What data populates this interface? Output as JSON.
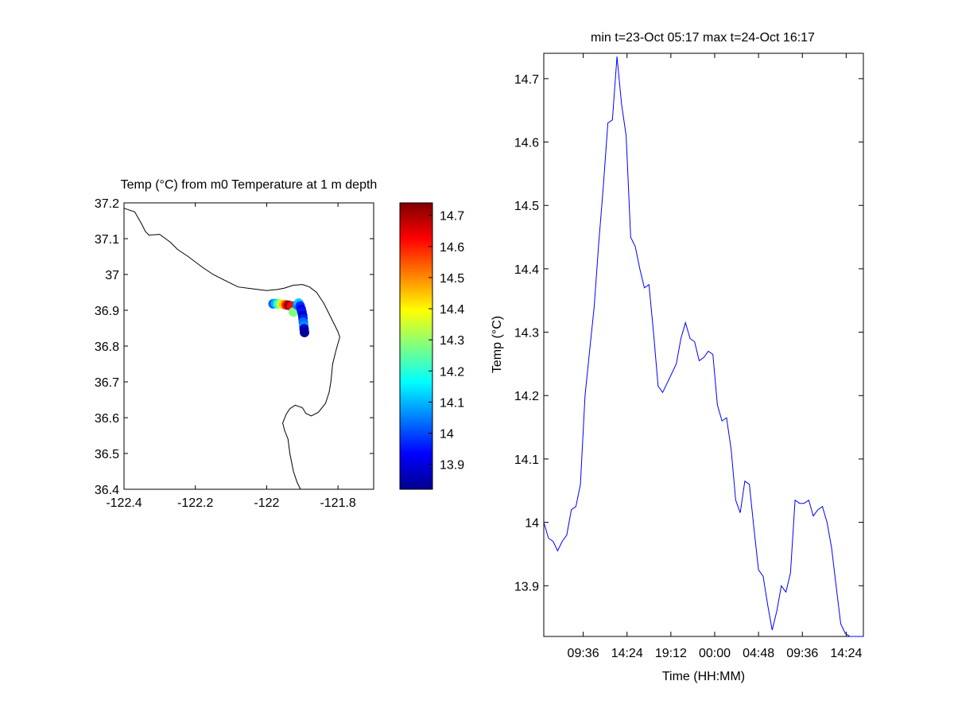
{
  "colors": {
    "line": "#0000ff",
    "axes": "#000000",
    "coast": "#000000"
  },
  "chart_data": [
    {
      "type": "scatter",
      "title": "Temp (°C) from m0 Temperature at 1 m depth",
      "xlabel": "",
      "ylabel": "",
      "xlim": [
        -122.4,
        -121.7
      ],
      "ylim": [
        36.4,
        37.2
      ],
      "xticks": [
        -122.4,
        -122.2,
        -122,
        -121.8
      ],
      "xtick_labels": [
        "-122.4",
        "-122.2",
        "-122",
        "-121.8"
      ],
      "yticks": [
        36.4,
        36.5,
        36.6,
        36.7,
        36.8,
        36.9,
        37.0,
        37.1,
        37.2
      ],
      "ytick_labels": [
        "36.4",
        "36.5",
        "36.6",
        "36.7",
        "36.8",
        "36.9",
        "37",
        "37.1",
        "37.2"
      ],
      "colormap": "jet",
      "color_range": [
        13.82,
        14.74
      ],
      "colorbar_ticks": [
        13.9,
        14.0,
        14.1,
        14.2,
        14.3,
        14.4,
        14.5,
        14.6,
        14.7
      ],
      "colorbar_tick_labels": [
        "13.9",
        "14",
        "14.1",
        "14.2",
        "14.3",
        "14.4",
        "14.5",
        "14.6",
        "14.7"
      ],
      "points": [
        {
          "lon": -121.982,
          "lat": 36.918,
          "temp": 14.02
        },
        {
          "lon": -121.975,
          "lat": 36.919,
          "temp": 14.1
        },
        {
          "lon": -121.968,
          "lat": 36.918,
          "temp": 14.22
        },
        {
          "lon": -121.96,
          "lat": 36.917,
          "temp": 14.35
        },
        {
          "lon": -121.952,
          "lat": 36.916,
          "temp": 14.45
        },
        {
          "lon": -121.945,
          "lat": 36.915,
          "temp": 14.6
        },
        {
          "lon": -121.938,
          "lat": 36.914,
          "temp": 14.73
        },
        {
          "lon": -121.93,
          "lat": 36.912,
          "temp": 14.62
        },
        {
          "lon": -121.925,
          "lat": 36.895,
          "temp": 14.28
        },
        {
          "lon": -121.915,
          "lat": 36.915,
          "temp": 14.05
        },
        {
          "lon": -121.91,
          "lat": 36.92,
          "temp": 14.12
        },
        {
          "lon": -121.906,
          "lat": 36.912,
          "temp": 13.97
        },
        {
          "lon": -121.903,
          "lat": 36.903,
          "temp": 13.92
        },
        {
          "lon": -121.901,
          "lat": 36.895,
          "temp": 13.95
        },
        {
          "lon": -121.899,
          "lat": 36.885,
          "temp": 13.88
        },
        {
          "lon": -121.898,
          "lat": 36.876,
          "temp": 13.96
        },
        {
          "lon": -121.897,
          "lat": 36.867,
          "temp": 14.03
        },
        {
          "lon": -121.896,
          "lat": 36.857,
          "temp": 14.06
        },
        {
          "lon": -121.895,
          "lat": 36.848,
          "temp": 13.9
        },
        {
          "lon": -121.894,
          "lat": 36.838,
          "temp": 13.84
        }
      ],
      "coastline": [
        [
          -122.4,
          37.185
        ],
        [
          -122.37,
          37.175
        ],
        [
          -122.35,
          37.14
        ],
        [
          -122.34,
          37.12
        ],
        [
          -122.33,
          37.11
        ],
        [
          -122.3,
          37.112
        ],
        [
          -122.27,
          37.09
        ],
        [
          -122.25,
          37.07
        ],
        [
          -122.22,
          37.05
        ],
        [
          -122.18,
          37.02
        ],
        [
          -122.15,
          37.0
        ],
        [
          -122.12,
          36.985
        ],
        [
          -122.08,
          36.965
        ],
        [
          -122.04,
          36.96
        ],
        [
          -122.0,
          36.955
        ],
        [
          -121.97,
          36.958
        ],
        [
          -121.95,
          36.962
        ],
        [
          -121.925,
          36.97
        ],
        [
          -121.9,
          36.972
        ],
        [
          -121.88,
          36.965
        ],
        [
          -121.86,
          36.95
        ],
        [
          -121.84,
          36.92
        ],
        [
          -121.82,
          36.88
        ],
        [
          -121.8,
          36.84
        ],
        [
          -121.795,
          36.825
        ],
        [
          -121.805,
          36.79
        ],
        [
          -121.815,
          36.75
        ],
        [
          -121.82,
          36.7
        ],
        [
          -121.825,
          36.67
        ],
        [
          -121.835,
          36.64
        ],
        [
          -121.855,
          36.615
        ],
        [
          -121.875,
          36.605
        ],
        [
          -121.89,
          36.612
        ],
        [
          -121.9,
          36.628
        ],
        [
          -121.92,
          36.635
        ],
        [
          -121.935,
          36.625
        ],
        [
          -121.945,
          36.61
        ],
        [
          -121.955,
          36.585
        ],
        [
          -121.95,
          36.565
        ],
        [
          -121.94,
          36.54
        ],
        [
          -121.935,
          36.5
        ],
        [
          -121.925,
          36.45
        ],
        [
          -121.915,
          36.42
        ],
        [
          -121.905,
          36.4
        ]
      ]
    },
    {
      "type": "line",
      "title": "min t=23-Oct 05:17 max t=24-Oct 16:17",
      "xlabel": "Time (HH:MM)",
      "ylabel": "Temp (°C)",
      "xlim_hours": [
        5.283,
        40.283
      ],
      "ylim": [
        13.82,
        14.74
      ],
      "xticks_hours": [
        9.6,
        14.4,
        19.2,
        24.0,
        28.8,
        33.6,
        38.4
      ],
      "xtick_labels": [
        "09:36",
        "14:24",
        "19:12",
        "00:00",
        "04:48",
        "09:36",
        "14:24"
      ],
      "yticks": [
        13.9,
        14.0,
        14.1,
        14.2,
        14.3,
        14.4,
        14.5,
        14.6,
        14.7
      ],
      "ytick_labels": [
        "13.9",
        "14",
        "14.1",
        "14.2",
        "14.3",
        "14.4",
        "14.5",
        "14.6",
        "14.7"
      ],
      "series": [
        {
          "hours": [
            5.28,
            5.8,
            6.3,
            6.8,
            7.3,
            7.8,
            8.3,
            8.8,
            9.3,
            9.8,
            10.3,
            10.8,
            11.3,
            11.8,
            12.3,
            12.8,
            13.3,
            13.8,
            14.3,
            14.8,
            15.3,
            15.8,
            16.3,
            16.8,
            17.3,
            17.8,
            18.3,
            18.8,
            19.3,
            19.8,
            20.3,
            20.8,
            21.3,
            21.8,
            22.3,
            22.8,
            23.3,
            23.8,
            24.3,
            24.8,
            25.3,
            25.8,
            26.3,
            26.8,
            27.3,
            27.8,
            28.3,
            28.8,
            29.3,
            29.8,
            30.3,
            30.8,
            31.3,
            31.8,
            32.3,
            32.8,
            33.3,
            33.8,
            34.3,
            34.8,
            35.3,
            35.8,
            36.3,
            36.8,
            37.3,
            37.8,
            38.3,
            38.8,
            39.3,
            39.8,
            40.28
          ],
          "values": [
            14.0,
            13.975,
            13.97,
            13.955,
            13.97,
            13.98,
            14.02,
            14.025,
            14.06,
            14.2,
            14.27,
            14.34,
            14.44,
            14.53,
            14.63,
            14.635,
            14.735,
            14.66,
            14.61,
            14.45,
            14.435,
            14.4,
            14.37,
            14.375,
            14.3,
            14.215,
            14.205,
            14.22,
            14.235,
            14.25,
            14.29,
            14.315,
            14.29,
            14.285,
            14.255,
            14.26,
            14.27,
            14.265,
            14.185,
            14.16,
            14.165,
            14.115,
            14.035,
            14.015,
            14.065,
            14.06,
            13.99,
            13.925,
            13.915,
            13.87,
            13.83,
            13.86,
            13.9,
            13.89,
            13.92,
            14.035,
            14.03,
            14.03,
            14.035,
            14.01,
            14.02,
            14.025,
            14.0,
            13.96,
            13.9,
            13.84,
            13.825,
            13.82,
            13.82,
            13.82,
            13.82
          ]
        }
      ]
    }
  ]
}
